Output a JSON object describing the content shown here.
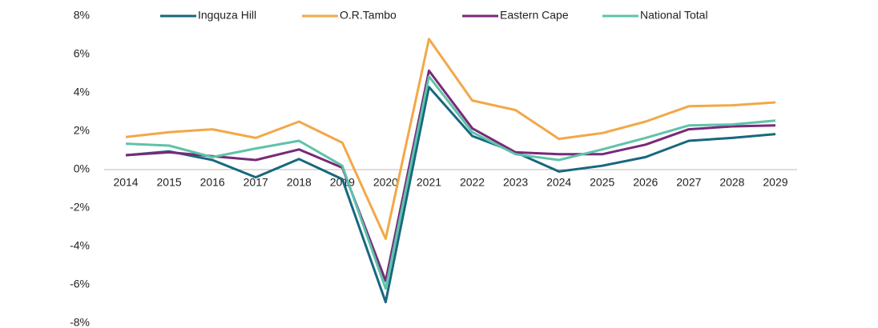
{
  "chart_data": {
    "type": "line",
    "categories": [
      "2014",
      "2015",
      "2016",
      "2017",
      "2018",
      "2019",
      "2020",
      "2021",
      "2022",
      "2023",
      "2024",
      "2025",
      "2026",
      "2027",
      "2028",
      "2029"
    ],
    "series": [
      {
        "name": "Ingquza Hill",
        "color": "#17687e",
        "values": [
          0.75,
          0.95,
          0.5,
          -0.4,
          0.55,
          -0.5,
          -6.9,
          4.3,
          1.75,
          0.9,
          -0.1,
          0.2,
          0.65,
          1.5,
          1.65,
          1.85
        ]
      },
      {
        "name": "O.R.Tambo",
        "color": "#f2a848",
        "values": [
          1.7,
          1.95,
          2.1,
          1.65,
          2.5,
          1.4,
          -3.6,
          6.8,
          3.6,
          3.1,
          1.6,
          1.9,
          2.5,
          3.3,
          3.35,
          3.5
        ]
      },
      {
        "name": "Eastern Cape",
        "color": "#782a79",
        "values": [
          0.75,
          0.9,
          0.7,
          0.5,
          1.05,
          0.1,
          -5.8,
          5.15,
          2.15,
          0.9,
          0.8,
          0.8,
          1.3,
          2.1,
          2.25,
          2.3
        ]
      },
      {
        "name": "National Total",
        "color": "#5ec3a9",
        "values": [
          1.35,
          1.25,
          0.65,
          1.1,
          1.5,
          0.2,
          -6.2,
          4.85,
          1.95,
          0.8,
          0.5,
          1.05,
          1.65,
          2.3,
          2.35,
          2.55
        ]
      }
    ],
    "ylim": [
      -8,
      8
    ],
    "yticks": [
      {
        "value": -8,
        "label": "-8%"
      },
      {
        "value": -6,
        "label": "-6%"
      },
      {
        "value": -4,
        "label": "-4%"
      },
      {
        "value": -2,
        "label": "-2%"
      },
      {
        "value": 0,
        "label": "0%"
      },
      {
        "value": 2,
        "label": "2%"
      },
      {
        "value": 4,
        "label": "4%"
      },
      {
        "value": 6,
        "label": "6%"
      },
      {
        "value": 8,
        "label": "8%"
      }
    ],
    "grid": false,
    "legend": "top"
  }
}
